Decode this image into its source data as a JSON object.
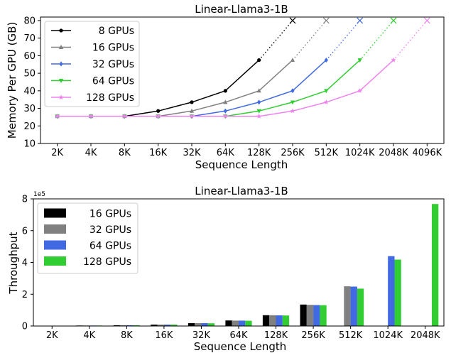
{
  "chart_data": [
    {
      "type": "line",
      "title": "Linear-Llama3-1B",
      "xlabel": "Sequence Length",
      "ylabel": "Memory Per GPU (GB)",
      "categories": [
        "2K",
        "4K",
        "8K",
        "16K",
        "32K",
        "64K",
        "128K",
        "256K",
        "512K",
        "1024K",
        "2048K",
        "4096K"
      ],
      "ylim": [
        10,
        82
      ],
      "yticks": [
        10,
        20,
        30,
        40,
        50,
        60,
        70,
        80
      ],
      "grid": false,
      "legend_position": "top-left",
      "oom_marker": "x",
      "series": [
        {
          "name": "8 GPUs",
          "color": "#000000",
          "marker": "circle",
          "values": [
            25.5,
            25.5,
            25.5,
            28.5,
            33.5,
            40,
            57.5,
            null,
            null,
            null,
            null,
            null
          ],
          "oom_index": 7
        },
        {
          "name": "16 GPUs",
          "color": "#808080",
          "marker": "triangle-up",
          "values": [
            25.5,
            25.5,
            25.5,
            25.5,
            28.5,
            33.5,
            40,
            57.5,
            null,
            null,
            null,
            null
          ],
          "oom_index": 8
        },
        {
          "name": "32 GPUs",
          "color": "#4169e1",
          "marker": "diamond",
          "values": [
            25.5,
            25.5,
            25.5,
            25.5,
            25.5,
            28.5,
            33.5,
            40,
            57.5,
            null,
            null,
            null
          ],
          "oom_index": 9
        },
        {
          "name": "64 GPUs",
          "color": "#32cd32",
          "marker": "triangle-down",
          "values": [
            25.5,
            25.5,
            25.5,
            25.5,
            25.5,
            25.5,
            28.5,
            33.5,
            40,
            57.5,
            null,
            null
          ],
          "oom_index": 10
        },
        {
          "name": "128 GPUs",
          "color": "#ee82ee",
          "marker": "star",
          "values": [
            25.5,
            25.5,
            25.5,
            25.5,
            25.5,
            25.5,
            25.5,
            28.5,
            33.5,
            40,
            57.5,
            null
          ],
          "oom_index": 11
        }
      ]
    },
    {
      "type": "bar",
      "title": "Linear-Llama3-1B",
      "xlabel": "Sequence Length",
      "ylabel": "Throughput",
      "scale_label": "1e5",
      "categories": [
        "2K",
        "4K",
        "8K",
        "16K",
        "32K",
        "64K",
        "128K",
        "256K",
        "512K",
        "1024K",
        "2048K"
      ],
      "ylim": [
        0,
        8
      ],
      "yticks": [
        0,
        2,
        4,
        6,
        8
      ],
      "grid": false,
      "legend_position": "top-left",
      "series": [
        {
          "name": "16 GPUs",
          "color": "#000000",
          "values": [
            0.02,
            0.03,
            0.05,
            0.09,
            0.18,
            0.35,
            0.68,
            1.35,
            null,
            null,
            null
          ]
        },
        {
          "name": "32 GPUs",
          "color": "#808080",
          "values": [
            0.02,
            0.03,
            0.05,
            0.09,
            0.18,
            0.34,
            0.68,
            1.33,
            2.5,
            null,
            null
          ]
        },
        {
          "name": "64 GPUs",
          "color": "#4169e1",
          "values": [
            0.02,
            0.03,
            0.05,
            0.09,
            0.18,
            0.34,
            0.67,
            1.32,
            2.48,
            4.4,
            null
          ]
        },
        {
          "name": "128 GPUs",
          "color": "#32cd32",
          "values": [
            0.02,
            0.03,
            0.05,
            0.09,
            0.17,
            0.33,
            0.66,
            1.31,
            2.35,
            4.18,
            7.68
          ]
        }
      ]
    }
  ]
}
